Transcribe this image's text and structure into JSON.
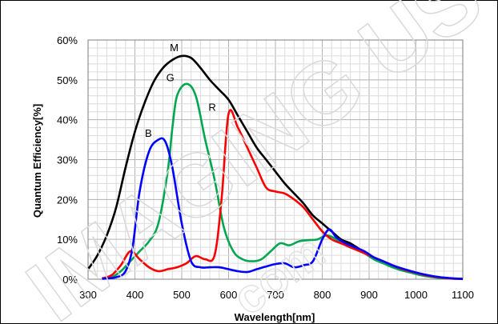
{
  "chart_data": {
    "type": "line",
    "title": "",
    "xlabel": "Wavelength[nm]",
    "ylabel": "Quantum Efficiency[%]",
    "xlim": [
      300,
      1100
    ],
    "ylim": [
      0,
      60
    ],
    "x_ticks": [
      300,
      400,
      500,
      600,
      700,
      800,
      900,
      1000,
      1100
    ],
    "x_tick_labels": [
      "300",
      "400",
      "500",
      "600",
      "700",
      "800",
      "900",
      "1000",
      "1100"
    ],
    "y_ticks": [
      0,
      10,
      20,
      30,
      40,
      50,
      60
    ],
    "y_tick_labels": [
      "0%",
      "10%",
      "20%",
      "30%",
      "40%",
      "50%",
      "60%"
    ],
    "grid": true,
    "series": [
      {
        "name": "M",
        "color": "#000000",
        "label_at": [
          500,
          56
        ],
        "points": [
          [
            300,
            2.5
          ],
          [
            320,
            6
          ],
          [
            340,
            11
          ],
          [
            360,
            18
          ],
          [
            380,
            28
          ],
          [
            400,
            37
          ],
          [
            420,
            44
          ],
          [
            440,
            49.5
          ],
          [
            460,
            53
          ],
          [
            480,
            55
          ],
          [
            500,
            56
          ],
          [
            520,
            55.5
          ],
          [
            540,
            53
          ],
          [
            560,
            50
          ],
          [
            580,
            47.5
          ],
          [
            600,
            45
          ],
          [
            620,
            41
          ],
          [
            640,
            37
          ],
          [
            660,
            33
          ],
          [
            680,
            30
          ],
          [
            700,
            27
          ],
          [
            720,
            24
          ],
          [
            740,
            21.5
          ],
          [
            760,
            19
          ],
          [
            780,
            16
          ],
          [
            800,
            14
          ],
          [
            820,
            12
          ],
          [
            840,
            10
          ],
          [
            860,
            9
          ],
          [
            880,
            7.5
          ],
          [
            900,
            6
          ],
          [
            920,
            5
          ],
          [
            940,
            4
          ],
          [
            960,
            3
          ],
          [
            980,
            2.2
          ],
          [
            1000,
            1.6
          ],
          [
            1020,
            1
          ],
          [
            1040,
            0.6
          ],
          [
            1060,
            0.3
          ],
          [
            1080,
            0.15
          ],
          [
            1100,
            0.1
          ]
        ]
      },
      {
        "name": "G",
        "color": "#00a650",
        "label_at": [
          491,
          48.5
        ],
        "points": [
          [
            330,
            0.1
          ],
          [
            350,
            0.5
          ],
          [
            370,
            2
          ],
          [
            390,
            4.5
          ],
          [
            410,
            7
          ],
          [
            430,
            9.5
          ],
          [
            450,
            14
          ],
          [
            470,
            27
          ],
          [
            480,
            38
          ],
          [
            490,
            46
          ],
          [
            510,
            49
          ],
          [
            530,
            46
          ],
          [
            550,
            35
          ],
          [
            570,
            25
          ],
          [
            590,
            13
          ],
          [
            610,
            7
          ],
          [
            630,
            5
          ],
          [
            650,
            4.5
          ],
          [
            670,
            5
          ],
          [
            690,
            7
          ],
          [
            710,
            9
          ],
          [
            730,
            8.5
          ],
          [
            750,
            9.5
          ],
          [
            770,
            9.8
          ],
          [
            790,
            10
          ],
          [
            810,
            11
          ],
          [
            830,
            10
          ],
          [
            850,
            8.5
          ],
          [
            870,
            7.5
          ],
          [
            890,
            6.5
          ],
          [
            910,
            5
          ],
          [
            930,
            4
          ],
          [
            950,
            3
          ],
          [
            970,
            2.2
          ],
          [
            990,
            1.6
          ],
          [
            1010,
            1
          ],
          [
            1030,
            0.6
          ],
          [
            1060,
            0.2
          ],
          [
            1100,
            0.05
          ]
        ]
      },
      {
        "name": "R",
        "color": "#ff0000",
        "label_at": [
          580,
          41
        ],
        "points": [
          [
            330,
            0.2
          ],
          [
            350,
            1
          ],
          [
            370,
            3.5
          ],
          [
            390,
            7
          ],
          [
            410,
            5
          ],
          [
            430,
            3
          ],
          [
            450,
            2
          ],
          [
            470,
            2.5
          ],
          [
            490,
            3
          ],
          [
            510,
            4
          ],
          [
            530,
            5.8
          ],
          [
            550,
            5
          ],
          [
            570,
            6
          ],
          [
            585,
            20
          ],
          [
            600,
            41.5
          ],
          [
            620,
            38
          ],
          [
            640,
            33
          ],
          [
            660,
            28
          ],
          [
            680,
            23
          ],
          [
            700,
            22
          ],
          [
            720,
            21.5
          ],
          [
            740,
            20
          ],
          [
            760,
            18
          ],
          [
            780,
            15
          ],
          [
            800,
            12
          ],
          [
            820,
            10
          ],
          [
            840,
            9
          ],
          [
            860,
            8
          ],
          [
            880,
            7
          ],
          [
            900,
            6
          ],
          [
            920,
            5
          ],
          [
            940,
            4
          ],
          [
            960,
            3
          ],
          [
            980,
            2.2
          ],
          [
            1000,
            1.6
          ],
          [
            1020,
            1
          ],
          [
            1040,
            0.6
          ],
          [
            1070,
            0.2
          ],
          [
            1100,
            0.05
          ]
        ]
      },
      {
        "name": "B",
        "color": "#0000ff",
        "label_at": [
          443,
          34.5
        ],
        "points": [
          [
            330,
            0.1
          ],
          [
            360,
            0.5
          ],
          [
            380,
            2
          ],
          [
            395,
            8
          ],
          [
            410,
            22
          ],
          [
            430,
            32
          ],
          [
            450,
            35
          ],
          [
            465,
            34.5
          ],
          [
            480,
            28
          ],
          [
            500,
            14
          ],
          [
            520,
            4.5
          ],
          [
            540,
            3
          ],
          [
            560,
            3
          ],
          [
            580,
            3
          ],
          [
            600,
            2.5
          ],
          [
            620,
            2
          ],
          [
            640,
            1.8
          ],
          [
            660,
            2.5
          ],
          [
            680,
            3.2
          ],
          [
            700,
            3.8
          ],
          [
            720,
            4
          ],
          [
            740,
            3
          ],
          [
            760,
            3.5
          ],
          [
            780,
            4.5
          ],
          [
            800,
            10
          ],
          [
            815,
            12.5
          ],
          [
            830,
            10.5
          ],
          [
            850,
            9
          ],
          [
            870,
            8
          ],
          [
            890,
            7
          ],
          [
            910,
            5.5
          ],
          [
            930,
            4.5
          ],
          [
            950,
            3.5
          ],
          [
            970,
            2.7
          ],
          [
            990,
            2
          ],
          [
            1010,
            1.4
          ],
          [
            1040,
            0.7
          ],
          [
            1070,
            0.3
          ],
          [
            1100,
            0.05
          ]
        ]
      }
    ]
  },
  "watermark": {
    "main": "IMAGING US",
    "sub": "com"
  }
}
